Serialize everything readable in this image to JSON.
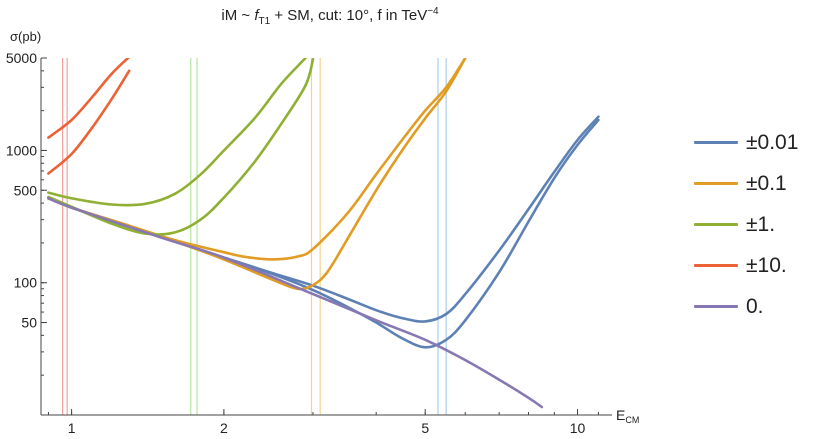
{
  "chart_data": {
    "type": "line",
    "title_parts": {
      "prefix": "iM ~ ",
      "f": "f",
      "sub": "T1",
      "mid": " + SM,  cut: 10°,  f in TeV",
      "sup": "−4"
    },
    "ylabel": "σ(pb)",
    "xlabel": "E",
    "xlabel_sub": "CM",
    "x_scale": "log",
    "y_scale": "log",
    "xlim": [
      0.87,
      11.7
    ],
    "ylim": [
      10,
      5000
    ],
    "x_ticks": [
      {
        "value": 1,
        "label": "1"
      },
      {
        "value": 2,
        "label": "2"
      },
      {
        "value": 5,
        "label": "5"
      },
      {
        "value": 10,
        "label": "10"
      }
    ],
    "y_ticks": [
      {
        "value": 50,
        "label": "50"
      },
      {
        "value": 100,
        "label": "100"
      },
      {
        "value": 500,
        "label": "500"
      },
      {
        "value": 1000,
        "label": "1000"
      },
      {
        "value": 5000,
        "label": "5000"
      }
    ],
    "grid": false,
    "legend_position": "right",
    "series": [
      {
        "name": "±0.01",
        "color": "#5E81B5",
        "curves": [
          {
            "x": [
              0.9,
              1.0,
              1.3,
              1.6,
              2.0,
              2.5,
              3.0,
              3.5,
              4.0,
              4.5,
              5.0,
              5.5,
              6.0,
              7.0,
              8.0,
              9.0,
              10.0,
              11.0
            ],
            "y": [
              435,
              370,
              265,
              205,
              155,
              118,
              95,
              76,
              62,
              54,
              51,
              58,
              82,
              175,
              360,
              690,
              1200,
              1800
            ]
          },
          {
            "x": [
              0.9,
              1.0,
              1.3,
              1.6,
              2.0,
              2.5,
              3.0,
              3.5,
              4.0,
              4.5,
              5.0,
              5.5,
              6.0,
              7.0,
              8.0,
              9.0,
              10.0,
              11.0
            ],
            "y": [
              435,
              370,
              265,
              205,
              155,
              116,
              88,
              66,
              50,
              38,
              32.5,
              37,
              52,
              120,
              290,
              620,
              1100,
              1700
            ]
          }
        ]
      },
      {
        "name": "±0.1",
        "color": "#E19C24",
        "curves": [
          {
            "x": [
              0.9,
              1.0,
              1.3,
              1.6,
              2.0,
              2.2,
              2.5,
              2.8,
              3.0,
              3.5,
              4.0,
              4.5,
              5.0,
              5.5,
              6.0
            ],
            "y": [
              435,
              370,
              270,
              210,
              170,
              157,
              150,
              158,
              180,
              330,
              660,
              1200,
              2000,
              3000,
              5000
            ]
          },
          {
            "x": [
              0.9,
              1.0,
              1.3,
              1.6,
              2.0,
              2.5,
              2.8,
              3.0,
              3.2,
              3.5,
              4.0,
              4.5,
              5.0,
              5.5,
              6.0
            ],
            "y": [
              435,
              370,
              265,
              205,
              150,
              105,
              90,
              96,
              120,
              210,
              500,
              1000,
              1750,
              2800,
              5000
            ]
          }
        ]
      },
      {
        "name": "±1.",
        "color": "#8FB032",
        "curves": [
          {
            "x": [
              0.9,
              1.0,
              1.2,
              1.4,
              1.6,
              1.8,
              2.0,
              2.3,
              2.6,
              2.9
            ],
            "y": [
              480,
              435,
              390,
              395,
              470,
              660,
              1000,
              1750,
              3200,
              5000
            ]
          },
          {
            "x": [
              0.9,
              1.0,
              1.2,
              1.4,
              1.6,
              1.8,
              2.0,
              2.3,
              2.6,
              2.9,
              3.0
            ],
            "y": [
              445,
              375,
              280,
              235,
              240,
              300,
              440,
              820,
              1600,
              3100,
              4900
            ]
          }
        ]
      },
      {
        "name": "±10.",
        "color": "#EB6235",
        "curves": [
          {
            "x": [
              0.9,
              1.0,
              1.1,
              1.2,
              1.3
            ],
            "y": [
              1250,
              1700,
              2550,
              3800,
              5100
            ]
          },
          {
            "x": [
              0.9,
              1.0,
              1.1,
              1.2,
              1.3
            ],
            "y": [
              670,
              940,
              1500,
              2450,
              4000
            ]
          }
        ]
      },
      {
        "name": "0.",
        "color": "#8778B3",
        "curves": [
          {
            "x": [
              0.9,
              1.0,
              1.5,
              2.0,
              3.0,
              4.0,
              5.0,
              6.0,
              7.0,
              8.0,
              8.5
            ],
            "y": [
              435,
              370,
              220,
              155,
              82,
              52,
              37,
              26,
              18.5,
              13.5,
              11.5
            ]
          }
        ]
      }
    ],
    "vertical_lines": [
      {
        "x": 0.96,
        "color": "#F4A0A0"
      },
      {
        "x": 0.98,
        "color": "#F4A0A0"
      },
      {
        "x": 1.72,
        "color": "#B4E6A0"
      },
      {
        "x": 1.77,
        "color": "#B4E6A0"
      },
      {
        "x": 2.98,
        "color": "#F5D28C"
      },
      {
        "x": 3.1,
        "color": "#F5D28C"
      },
      {
        "x": 5.3,
        "color": "#A8CFEA"
      },
      {
        "x": 5.5,
        "color": "#A8CFEA"
      }
    ]
  }
}
